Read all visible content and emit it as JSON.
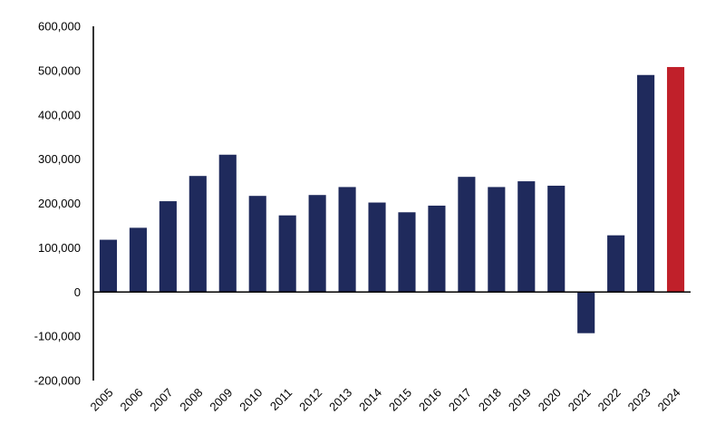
{
  "chart_data": {
    "type": "bar",
    "title": "",
    "xlabel": "",
    "ylabel": "",
    "categories": [
      "2005",
      "2006",
      "2007",
      "2008",
      "2009",
      "2010",
      "2011",
      "2012",
      "2013",
      "2014",
      "2015",
      "2016",
      "2017",
      "2018",
      "2019",
      "2020",
      "2021",
      "2022",
      "2023",
      "2024"
    ],
    "values": [
      118000,
      145000,
      205000,
      262000,
      310000,
      217000,
      173000,
      219000,
      237000,
      202000,
      180000,
      195000,
      260000,
      237000,
      250000,
      240000,
      -93000,
      128000,
      490000,
      508000
    ],
    "ylim": [
      -200000,
      600000
    ],
    "yticks": [
      -200000,
      -100000,
      0,
      100000,
      200000,
      300000,
      400000,
      500000,
      600000
    ],
    "ytick_labels": [
      "-200,000",
      "-100,000",
      "0",
      "100,000",
      "200,000",
      "300,000",
      "400,000",
      "500,000",
      "600,000"
    ],
    "grid": false,
    "legend": "none",
    "colors": {
      "default_bar": "#1f2a5c",
      "highlight_bar": "#c0202a",
      "axis": "#000000"
    },
    "highlight_category": "2024"
  }
}
